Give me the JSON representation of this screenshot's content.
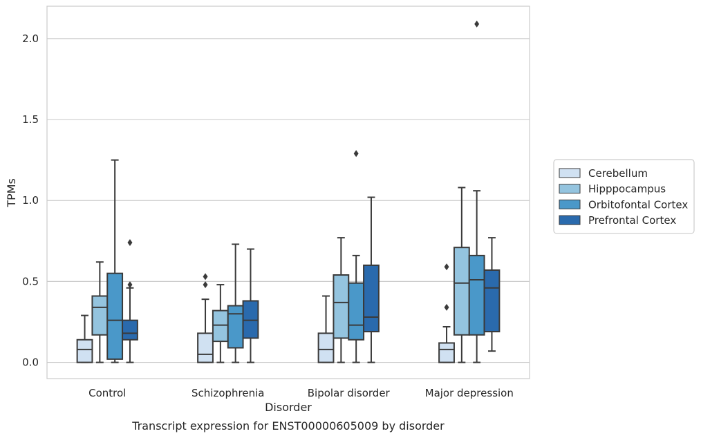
{
  "caption": "Transcript expression for ENST00000605009 by disorder",
  "chart_data": {
    "type": "box",
    "xlabel": "Disorder",
    "ylabel": "TPMs",
    "ylim": [
      -0.1,
      2.2
    ],
    "yticks": [
      0.0,
      0.5,
      1.0,
      1.5,
      2.0
    ],
    "ytick_labels": [
      "0.0",
      "0.5",
      "1.0",
      "1.5",
      "2.0"
    ],
    "grid": "horizontal",
    "legend_position": "right",
    "categories": [
      "Control",
      "Schizophrenia",
      "Bipolar disorder",
      "Major depression"
    ],
    "series": [
      {
        "name": "Cerebellum",
        "color": "#d0e1f2",
        "boxes": [
          {
            "whisker_low": 0.0,
            "q1": 0.0,
            "median": 0.08,
            "q3": 0.14,
            "whisker_high": 0.29,
            "outliers": []
          },
          {
            "whisker_low": 0.0,
            "q1": 0.0,
            "median": 0.05,
            "q3": 0.18,
            "whisker_high": 0.39,
            "outliers": [
              0.48,
              0.53
            ]
          },
          {
            "whisker_low": 0.0,
            "q1": 0.0,
            "median": 0.08,
            "q3": 0.18,
            "whisker_high": 0.41,
            "outliers": []
          },
          {
            "whisker_low": 0.0,
            "q1": 0.0,
            "median": 0.08,
            "q3": 0.12,
            "whisker_high": 0.22,
            "outliers": [
              0.34,
              0.59
            ]
          }
        ]
      },
      {
        "name": "Hipppocampus",
        "color": "#94c4df",
        "boxes": [
          {
            "whisker_low": 0.0,
            "q1": 0.17,
            "median": 0.34,
            "q3": 0.41,
            "whisker_high": 0.62,
            "outliers": []
          },
          {
            "whisker_low": 0.0,
            "q1": 0.13,
            "median": 0.23,
            "q3": 0.32,
            "whisker_high": 0.48,
            "outliers": []
          },
          {
            "whisker_low": 0.0,
            "q1": 0.15,
            "median": 0.37,
            "q3": 0.54,
            "whisker_high": 0.77,
            "outliers": []
          },
          {
            "whisker_low": 0.0,
            "q1": 0.17,
            "median": 0.49,
            "q3": 0.71,
            "whisker_high": 1.08,
            "outliers": []
          }
        ]
      },
      {
        "name": "Orbitofontal Cortex",
        "color": "#4a98c9",
        "boxes": [
          {
            "whisker_low": 0.0,
            "q1": 0.02,
            "median": 0.26,
            "q3": 0.55,
            "whisker_high": 1.25,
            "outliers": []
          },
          {
            "whisker_low": 0.0,
            "q1": 0.09,
            "median": 0.3,
            "q3": 0.35,
            "whisker_high": 0.73,
            "outliers": []
          },
          {
            "whisker_low": 0.0,
            "q1": 0.14,
            "median": 0.23,
            "q3": 0.49,
            "whisker_high": 0.66,
            "outliers": [
              1.29
            ]
          },
          {
            "whisker_low": 0.0,
            "q1": 0.17,
            "median": 0.51,
            "q3": 0.66,
            "whisker_high": 1.06,
            "outliers": [
              2.09
            ]
          }
        ]
      },
      {
        "name": "Prefrontal Cortex",
        "color": "#2a6aad",
        "boxes": [
          {
            "whisker_low": 0.0,
            "q1": 0.14,
            "median": 0.18,
            "q3": 0.26,
            "whisker_high": 0.46,
            "outliers": [
              0.48,
              0.74
            ]
          },
          {
            "whisker_low": 0.0,
            "q1": 0.15,
            "median": 0.26,
            "q3": 0.38,
            "whisker_high": 0.7,
            "outliers": []
          },
          {
            "whisker_low": 0.0,
            "q1": 0.19,
            "median": 0.28,
            "q3": 0.6,
            "whisker_high": 1.02,
            "outliers": []
          },
          {
            "whisker_low": 0.07,
            "q1": 0.19,
            "median": 0.46,
            "q3": 0.57,
            "whisker_high": 0.77,
            "outliers": []
          }
        ]
      }
    ]
  }
}
